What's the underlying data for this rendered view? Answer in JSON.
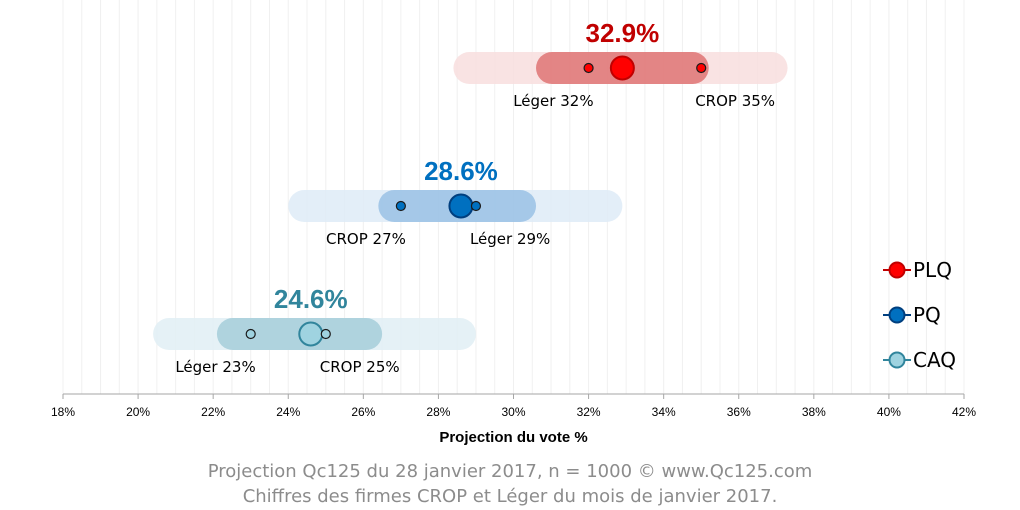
{
  "chart_data": {
    "type": "range-dot",
    "xlabel": "Projection du vote %",
    "xlim": [
      18,
      42
    ],
    "xticks": [
      18,
      20,
      22,
      24,
      26,
      28,
      30,
      32,
      34,
      36,
      38,
      40,
      42
    ],
    "tick_suffix": "%",
    "grid": true,
    "legend_position": "right",
    "series": [
      {
        "name": "PLQ",
        "projection": 32.9,
        "projection_label": "32.9%",
        "inner_range": [
          30.6,
          35.2
        ],
        "outer_range": [
          28.4,
          37.3
        ],
        "points": [
          {
            "label": "Léger 32%",
            "value": 32,
            "label_side": "left"
          },
          {
            "label": "CROP 35%",
            "value": 35,
            "label_side": "right"
          }
        ],
        "color": "#ff0000",
        "outline": "#c00000",
        "dark": "#c00000",
        "inner_color": "#e07a7a",
        "outer_color": "#f8dede"
      },
      {
        "name": "PQ",
        "projection": 28.6,
        "projection_label": "28.6%",
        "inner_range": [
          26.4,
          30.6
        ],
        "outer_range": [
          24.0,
          32.9
        ],
        "points": [
          {
            "label": "CROP 27%",
            "value": 27,
            "label_side": "left"
          },
          {
            "label": "Léger 29%",
            "value": 29,
            "label_side": "right"
          }
        ],
        "color": "#0070c0",
        "outline": "#003f7f",
        "dark": "#0070c0",
        "inner_color": "#9dc3e6",
        "outer_color": "#deebf7"
      },
      {
        "name": "CAQ",
        "projection": 24.6,
        "projection_label": "24.6%",
        "inner_range": [
          22.1,
          26.5
        ],
        "outer_range": [
          20.4,
          29.0
        ],
        "points": [
          {
            "label": "Léger 23%",
            "value": 23,
            "label_side": "left"
          },
          {
            "label": "CROP 25%",
            "value": 25,
            "label_side": "right"
          }
        ],
        "color": "#9fd3e0",
        "outline": "#31859c",
        "dark": "#31859c",
        "inner_color": "#a9cfdb",
        "outer_color": "#e1eef5"
      }
    ]
  },
  "caption": {
    "line1": "Projection Qc125 du 28 janvier 2017, n = 1000 © www.Qc125.com",
    "line2": "Chiffres des firmes CROP et Léger du mois de janvier 2017."
  }
}
